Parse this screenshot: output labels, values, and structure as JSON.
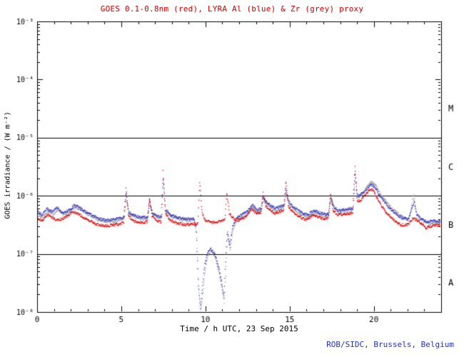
{
  "header": {
    "title": "GOES 0.1-0.8nm (red), LYRA Al (blue) & Zr (grey) proxy",
    "title_color": "#cc0000"
  },
  "footer": {
    "credit": "ROB/SIDC, Brussels, Belgium",
    "color": "#2233bb"
  },
  "chart_data": {
    "type": "scatter",
    "title": "GOES 0.1-0.8nm (red), LYRA Al (blue) & Zr (grey) proxy",
    "xlabel": "Time / h UTC, 23 Sep 2015",
    "ylabel": "GOES irradiance / (W m⁻²)",
    "xlim": [
      0,
      24
    ],
    "ylim_log10": [
      -8,
      -3
    ],
    "x_major_ticks": [
      0,
      5,
      10,
      15,
      20
    ],
    "x_minor_step_hours": 1,
    "y_tick_labels": [
      {
        "log10": -8,
        "label": "10⁻⁸"
      },
      {
        "log10": -7,
        "label": "10⁻⁷"
      },
      {
        "log10": -6,
        "label": "10⁻⁶"
      },
      {
        "log10": -5,
        "label": "10⁻⁵"
      },
      {
        "log10": -4,
        "label": "10⁻⁴"
      },
      {
        "log10": -3,
        "label": "10⁻³"
      }
    ],
    "hlines_log10": [
      -7,
      -6,
      -5
    ],
    "flare_class_labels": [
      {
        "label": "M",
        "log10": -4.5
      },
      {
        "label": "C",
        "log10": -5.5
      },
      {
        "label": "B",
        "log10": -6.5
      },
      {
        "label": "A",
        "log10": -7.5
      }
    ],
    "grid": false,
    "series": [
      {
        "name": "GOES 0.1-0.8nm",
        "color": "#d40000",
        "points_log10": [
          [
            0,
            -6.38
          ],
          [
            0.3,
            -6.43
          ],
          [
            0.6,
            -6.32
          ],
          [
            0.9,
            -6.38
          ],
          [
            1.3,
            -6.42
          ],
          [
            1.8,
            -6.35
          ],
          [
            2.1,
            -6.28
          ],
          [
            2.4,
            -6.3
          ],
          [
            2.8,
            -6.38
          ],
          [
            3.2,
            -6.44
          ],
          [
            3.6,
            -6.5
          ],
          [
            4.1,
            -6.52
          ],
          [
            4.6,
            -6.5
          ],
          [
            5.15,
            -6.47
          ],
          [
            5.28,
            -5.88
          ],
          [
            5.42,
            -6.35
          ],
          [
            5.8,
            -6.44
          ],
          [
            6.2,
            -6.46
          ],
          [
            6.55,
            -6.45
          ],
          [
            6.67,
            -6.02
          ],
          [
            6.82,
            -6.35
          ],
          [
            7.1,
            -6.43
          ],
          [
            7.38,
            -6.45
          ],
          [
            7.48,
            -5.58
          ],
          [
            7.62,
            -6.3
          ],
          [
            7.9,
            -6.42
          ],
          [
            8.4,
            -6.48
          ],
          [
            8.9,
            -6.5
          ],
          [
            9.3,
            -6.48
          ],
          [
            9.55,
            -6.48
          ],
          [
            9.66,
            -5.75
          ],
          [
            9.8,
            -6.3
          ],
          [
            10.0,
            -6.43
          ],
          [
            10.4,
            -6.46
          ],
          [
            10.8,
            -6.44
          ],
          [
            11.15,
            -6.42
          ],
          [
            11.27,
            -5.95
          ],
          [
            11.42,
            -6.3
          ],
          [
            11.7,
            -6.4
          ],
          [
            12.0,
            -6.42
          ],
          [
            12.4,
            -6.35
          ],
          [
            12.75,
            -6.22
          ],
          [
            13.0,
            -6.3
          ],
          [
            13.3,
            -6.3
          ],
          [
            13.42,
            -5.95
          ],
          [
            13.58,
            -6.18
          ],
          [
            13.85,
            -6.25
          ],
          [
            14.1,
            -6.3
          ],
          [
            14.4,
            -6.27
          ],
          [
            14.65,
            -6.25
          ],
          [
            14.77,
            -5.73
          ],
          [
            14.92,
            -6.18
          ],
          [
            15.2,
            -6.28
          ],
          [
            15.6,
            -6.36
          ],
          [
            16.0,
            -6.42
          ],
          [
            16.4,
            -6.33
          ],
          [
            16.8,
            -6.38
          ],
          [
            17.1,
            -6.4
          ],
          [
            17.3,
            -6.38
          ],
          [
            17.43,
            -5.97
          ],
          [
            17.58,
            -6.25
          ],
          [
            17.85,
            -6.33
          ],
          [
            18.2,
            -6.32
          ],
          [
            18.5,
            -6.3
          ],
          [
            18.75,
            -6.3
          ],
          [
            18.88,
            -5.48
          ],
          [
            19.0,
            -6.1
          ],
          [
            19.2,
            -6.08
          ],
          [
            19.5,
            -5.98
          ],
          [
            19.8,
            -5.88
          ],
          [
            20.0,
            -5.92
          ],
          [
            20.3,
            -6.1
          ],
          [
            20.7,
            -6.28
          ],
          [
            21.2,
            -6.42
          ],
          [
            21.6,
            -6.5
          ],
          [
            22.0,
            -6.5
          ],
          [
            22.35,
            -6.38
          ],
          [
            22.7,
            -6.45
          ],
          [
            23.1,
            -6.55
          ],
          [
            23.5,
            -6.52
          ],
          [
            23.8,
            -6.5
          ],
          [
            24,
            -6.52
          ]
        ]
      },
      {
        "name": "LYRA Al proxy",
        "color": "#3333bb",
        "points_log10": [
          [
            0,
            -6.27
          ],
          [
            0.3,
            -6.33
          ],
          [
            0.6,
            -6.22
          ],
          [
            0.9,
            -6.28
          ],
          [
            1.2,
            -6.2
          ],
          [
            1.5,
            -6.3
          ],
          [
            1.9,
            -6.25
          ],
          [
            2.2,
            -6.17
          ],
          [
            2.5,
            -6.2
          ],
          [
            2.9,
            -6.28
          ],
          [
            3.3,
            -6.34
          ],
          [
            3.7,
            -6.4
          ],
          [
            4.2,
            -6.42
          ],
          [
            4.7,
            -6.4
          ],
          [
            5.16,
            -6.37
          ],
          [
            5.29,
            -5.93
          ],
          [
            5.43,
            -6.28
          ],
          [
            5.85,
            -6.35
          ],
          [
            6.25,
            -6.37
          ],
          [
            6.56,
            -6.36
          ],
          [
            6.68,
            -6.07
          ],
          [
            6.83,
            -6.28
          ],
          [
            7.15,
            -6.35
          ],
          [
            7.39,
            -6.36
          ],
          [
            7.49,
            -5.66
          ],
          [
            7.63,
            -6.24
          ],
          [
            7.95,
            -6.33
          ],
          [
            8.45,
            -6.38
          ],
          [
            8.95,
            -6.4
          ],
          [
            9.3,
            -6.39
          ],
          [
            9.45,
            -6.55
          ],
          [
            9.58,
            -7.5
          ],
          [
            9.7,
            -7.95
          ],
          [
            9.82,
            -7.6
          ],
          [
            9.95,
            -7.2
          ],
          [
            10.1,
            -7.0
          ],
          [
            10.3,
            -6.9
          ],
          [
            10.55,
            -7.0
          ],
          [
            10.8,
            -7.25
          ],
          [
            11.0,
            -7.55
          ],
          [
            11.1,
            -7.75
          ],
          [
            11.22,
            -7.0
          ],
          [
            11.3,
            -6.6
          ],
          [
            11.45,
            -6.85
          ],
          [
            11.6,
            -6.55
          ],
          [
            11.8,
            -6.4
          ],
          [
            12.1,
            -6.33
          ],
          [
            12.45,
            -6.28
          ],
          [
            12.8,
            -6.15
          ],
          [
            13.05,
            -6.24
          ],
          [
            13.31,
            -6.22
          ],
          [
            13.43,
            -6.0
          ],
          [
            13.6,
            -6.1
          ],
          [
            13.9,
            -6.17
          ],
          [
            14.15,
            -6.22
          ],
          [
            14.45,
            -6.18
          ],
          [
            14.66,
            -6.16
          ],
          [
            14.78,
            -5.88
          ],
          [
            14.94,
            -6.1
          ],
          [
            15.25,
            -6.2
          ],
          [
            15.65,
            -6.28
          ],
          [
            16.05,
            -6.33
          ],
          [
            16.45,
            -6.25
          ],
          [
            16.85,
            -6.3
          ],
          [
            17.15,
            -6.32
          ],
          [
            17.32,
            -6.3
          ],
          [
            17.44,
            -6.02
          ],
          [
            17.6,
            -6.18
          ],
          [
            17.9,
            -6.26
          ],
          [
            18.25,
            -6.24
          ],
          [
            18.55,
            -6.22
          ],
          [
            18.76,
            -6.22
          ],
          [
            18.89,
            -5.58
          ],
          [
            19.02,
            -6.0
          ],
          [
            19.22,
            -5.98
          ],
          [
            19.52,
            -5.9
          ],
          [
            19.82,
            -5.8
          ],
          [
            20.05,
            -5.84
          ],
          [
            20.35,
            -6.0
          ],
          [
            20.75,
            -6.15
          ],
          [
            21.25,
            -6.3
          ],
          [
            21.65,
            -6.38
          ],
          [
            22.05,
            -6.4
          ],
          [
            22.4,
            -6.1
          ],
          [
            22.55,
            -6.32
          ],
          [
            22.75,
            -6.38
          ],
          [
            23.15,
            -6.45
          ],
          [
            23.55,
            -6.43
          ],
          [
            24,
            -6.44
          ]
        ]
      },
      {
        "name": "LYRA Zr proxy",
        "color": "#9a9a9a",
        "points_log10": [
          [
            0,
            -6.32
          ],
          [
            0.35,
            -6.37
          ],
          [
            0.65,
            -6.27
          ],
          [
            0.95,
            -6.32
          ],
          [
            1.25,
            -6.24
          ],
          [
            1.55,
            -6.33
          ],
          [
            1.95,
            -6.28
          ],
          [
            2.25,
            -6.2
          ],
          [
            2.55,
            -6.23
          ],
          [
            2.95,
            -6.31
          ],
          [
            3.35,
            -6.37
          ],
          [
            3.75,
            -6.43
          ],
          [
            4.25,
            -6.45
          ],
          [
            4.75,
            -6.43
          ],
          [
            5.17,
            -6.4
          ],
          [
            5.3,
            -5.97
          ],
          [
            5.44,
            -6.3
          ],
          [
            5.9,
            -6.38
          ],
          [
            6.3,
            -6.4
          ],
          [
            6.57,
            -6.39
          ],
          [
            6.69,
            -6.1
          ],
          [
            6.84,
            -6.3
          ],
          [
            7.2,
            -6.38
          ],
          [
            7.4,
            -6.39
          ],
          [
            7.5,
            -5.72
          ],
          [
            7.64,
            -6.27
          ],
          [
            8.0,
            -6.36
          ],
          [
            8.5,
            -6.41
          ],
          [
            9.0,
            -6.43
          ],
          [
            9.32,
            -6.41
          ],
          [
            9.47,
            -6.65
          ],
          [
            9.6,
            -7.65
          ],
          [
            9.72,
            -8.0
          ],
          [
            9.84,
            -7.7
          ],
          [
            9.97,
            -7.3
          ],
          [
            10.12,
            -7.05
          ],
          [
            10.32,
            -6.95
          ],
          [
            10.57,
            -7.05
          ],
          [
            10.82,
            -7.35
          ],
          [
            11.02,
            -7.65
          ],
          [
            11.12,
            -7.85
          ],
          [
            11.24,
            -7.1
          ],
          [
            11.32,
            -6.7
          ],
          [
            11.47,
            -6.95
          ],
          [
            11.62,
            -6.6
          ],
          [
            11.82,
            -6.45
          ],
          [
            12.12,
            -6.37
          ],
          [
            12.47,
            -6.32
          ],
          [
            12.82,
            -6.2
          ],
          [
            13.07,
            -6.28
          ],
          [
            13.32,
            -6.26
          ],
          [
            13.44,
            -6.05
          ],
          [
            13.62,
            -6.14
          ],
          [
            13.92,
            -6.2
          ],
          [
            14.17,
            -6.26
          ],
          [
            14.47,
            -6.22
          ],
          [
            14.67,
            -6.2
          ],
          [
            14.79,
            -5.93
          ],
          [
            14.96,
            -6.14
          ],
          [
            15.3,
            -6.24
          ],
          [
            15.7,
            -6.32
          ],
          [
            16.1,
            -6.36
          ],
          [
            16.5,
            -6.29
          ],
          [
            16.9,
            -6.33
          ],
          [
            17.2,
            -6.35
          ],
          [
            17.33,
            -6.33
          ],
          [
            17.45,
            -6.07
          ],
          [
            17.62,
            -6.21
          ],
          [
            17.95,
            -6.29
          ],
          [
            18.3,
            -6.27
          ],
          [
            18.6,
            -6.25
          ],
          [
            18.77,
            -6.25
          ],
          [
            18.9,
            -5.63
          ],
          [
            19.04,
            -6.03
          ],
          [
            19.24,
            -6.0
          ],
          [
            19.54,
            -5.88
          ],
          [
            19.84,
            -5.76
          ],
          [
            20.08,
            -5.8
          ],
          [
            20.38,
            -5.97
          ],
          [
            20.78,
            -6.12
          ],
          [
            21.28,
            -6.27
          ],
          [
            21.68,
            -6.36
          ],
          [
            22.08,
            -6.42
          ],
          [
            22.38,
            -5.98
          ],
          [
            22.5,
            -6.25
          ],
          [
            22.6,
            -6.42
          ],
          [
            22.78,
            -6.4
          ],
          [
            23.18,
            -6.48
          ],
          [
            23.58,
            -6.46
          ],
          [
            24,
            -6.47
          ]
        ]
      }
    ]
  }
}
